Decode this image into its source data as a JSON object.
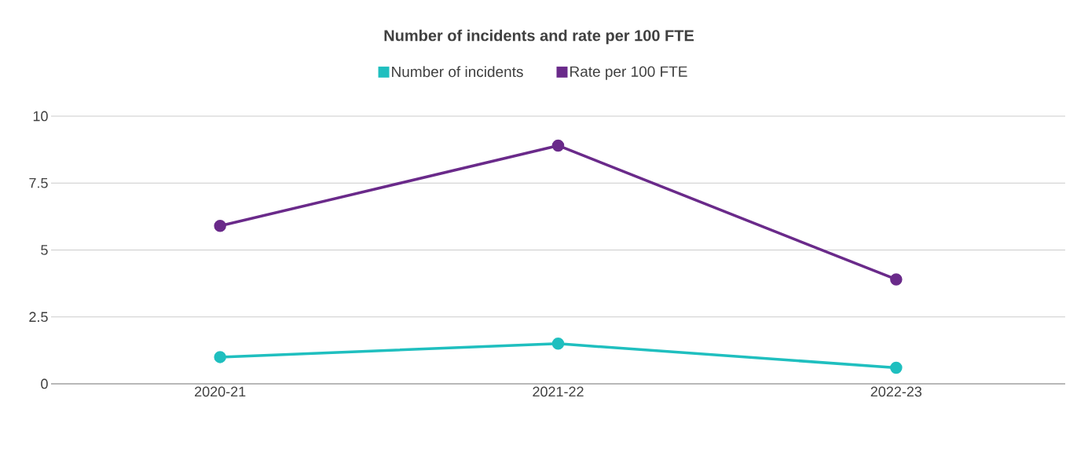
{
  "chart_data": {
    "type": "line",
    "title": "Number of incidents and rate per 100 FTE",
    "categories": [
      "2020-21",
      "2021-22",
      "2022-23"
    ],
    "series": [
      {
        "name": "Number of incidents",
        "color": "#1fbfbf",
        "values": [
          1.0,
          1.5,
          0.6
        ]
      },
      {
        "name": "Rate per 100 FTE",
        "color": "#6a2a8a",
        "values": [
          5.9,
          8.9,
          3.9
        ]
      }
    ],
    "ylim": [
      0,
      10
    ],
    "yticks": [
      0,
      2.5,
      5,
      7.5,
      10
    ],
    "grid": "y",
    "legend": "top",
    "marker": "circle",
    "line_style": "solid"
  }
}
